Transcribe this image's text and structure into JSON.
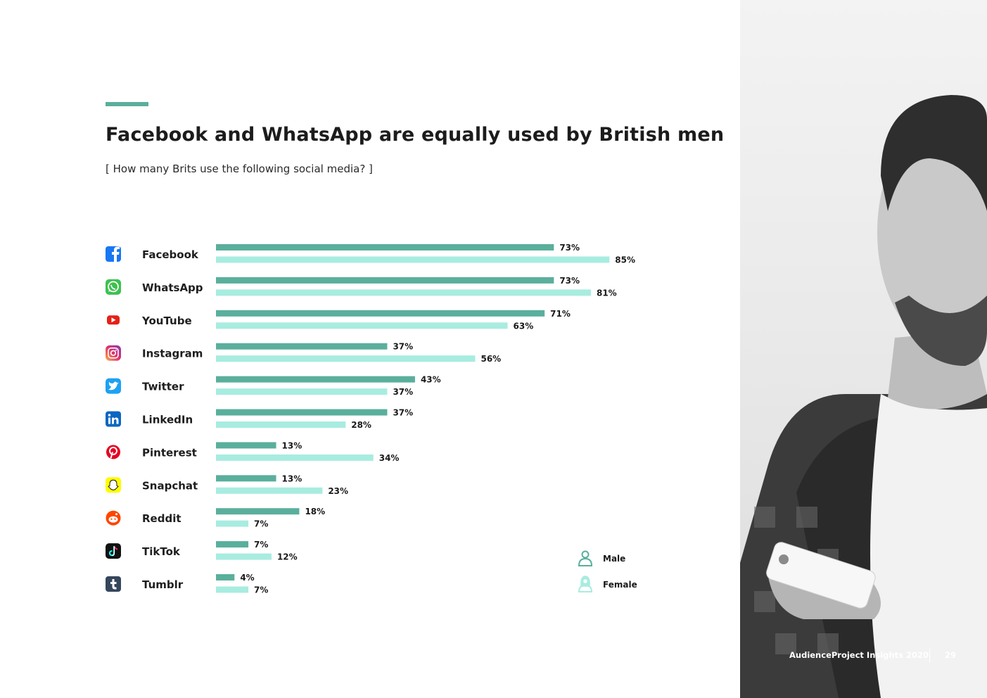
{
  "header": {
    "title": "Facebook and WhatsApp are equally used by British men",
    "subtitle": "[ How many Brits use the following social media? ]"
  },
  "colors": {
    "accent": "#5aaf9c",
    "male": "#5aaf9c",
    "female": "#a8ece0"
  },
  "chart_data": {
    "type": "bar",
    "orientation": "horizontal",
    "categories": [
      "Facebook",
      "WhatsApp",
      "YouTube",
      "Instagram",
      "Twitter",
      "LinkedIn",
      "Pinterest",
      "Snapchat",
      "Reddit",
      "TikTok",
      "Tumblr"
    ],
    "icons": [
      "facebook-icon",
      "whatsapp-icon",
      "youtube-icon",
      "instagram-icon",
      "twitter-icon",
      "linkedin-icon",
      "pinterest-icon",
      "snapchat-icon",
      "reddit-icon",
      "tiktok-icon",
      "tumblr-icon"
    ],
    "series": [
      {
        "name": "Male",
        "values": [
          73,
          73,
          71,
          37,
          43,
          37,
          13,
          13,
          18,
          7,
          4
        ],
        "labels": [
          "73%",
          "73%",
          "71%",
          "37%",
          "43%",
          "37%",
          "13%",
          "13%",
          "18%",
          "7%",
          "4%"
        ]
      },
      {
        "name": "Female",
        "values": [
          85,
          81,
          63,
          56,
          37,
          28,
          34,
          23,
          7,
          12,
          7
        ],
        "labels": [
          "85%",
          "81%",
          "63%",
          "56%",
          "37%",
          "28%",
          "34%",
          "23%",
          "7%",
          "12%",
          "7%"
        ]
      }
    ],
    "xlim": [
      0,
      100
    ],
    "legend_position": "bottom-right",
    "grid": false
  },
  "legend": {
    "items": [
      {
        "label": "Male",
        "icon": "male-icon"
      },
      {
        "label": "Female",
        "icon": "female-icon"
      }
    ]
  },
  "footer": {
    "brand": "AudienceProject Insights 2020",
    "page": "29"
  }
}
